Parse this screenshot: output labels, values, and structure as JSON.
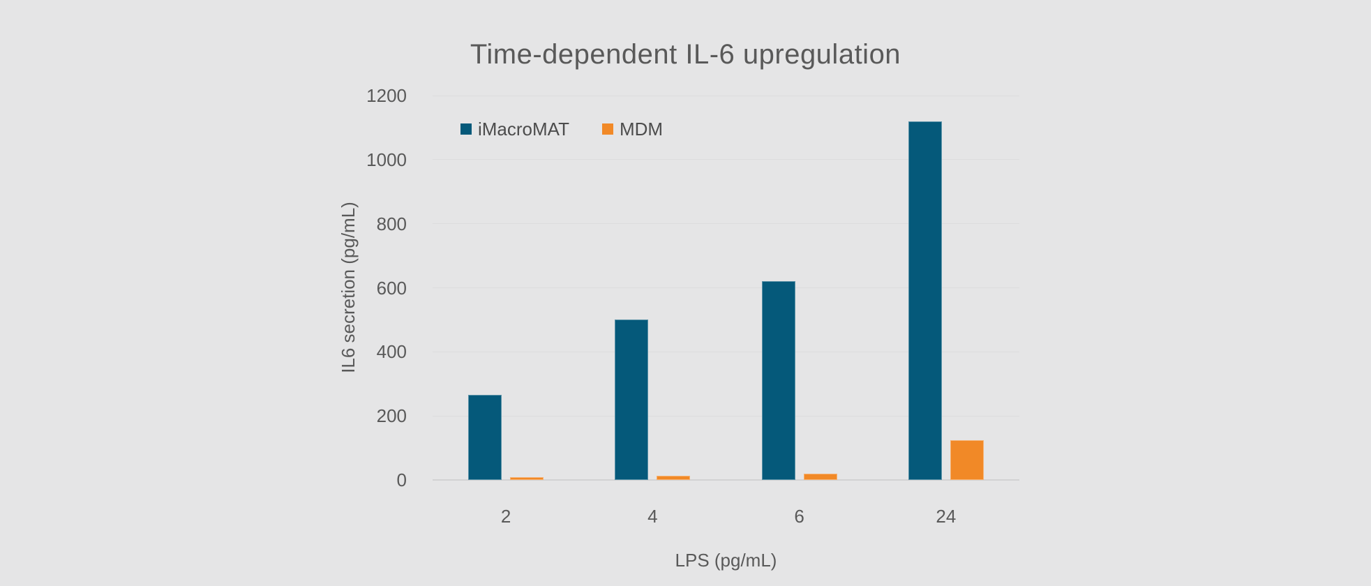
{
  "window": {
    "background_color": "#e5e5e6",
    "text_color": "#595959"
  },
  "chart_data": {
    "type": "bar",
    "title": "Time-dependent IL-6 upregulation",
    "categories": [
      "2",
      "4",
      "6",
      "24"
    ],
    "series": [
      {
        "name": "iMacroMAT",
        "color": "#05597a",
        "values": [
          265,
          500,
          620,
          1120
        ]
      },
      {
        "name": "MDM",
        "color": "#f18927",
        "values": [
          8,
          13,
          20,
          125
        ]
      }
    ],
    "xlabel": "LPS (pg/mL)",
    "ylabel": "IL6 secretion (pg/mL)",
    "ylim": [
      0,
      1200
    ],
    "yticks": [
      0,
      200,
      400,
      600,
      800,
      1000,
      1200
    ],
    "grid": true,
    "gridline_color": "#dcdcdd",
    "axis_line_color": "#d2d2d3",
    "legend_position": "top-inside-left"
  }
}
